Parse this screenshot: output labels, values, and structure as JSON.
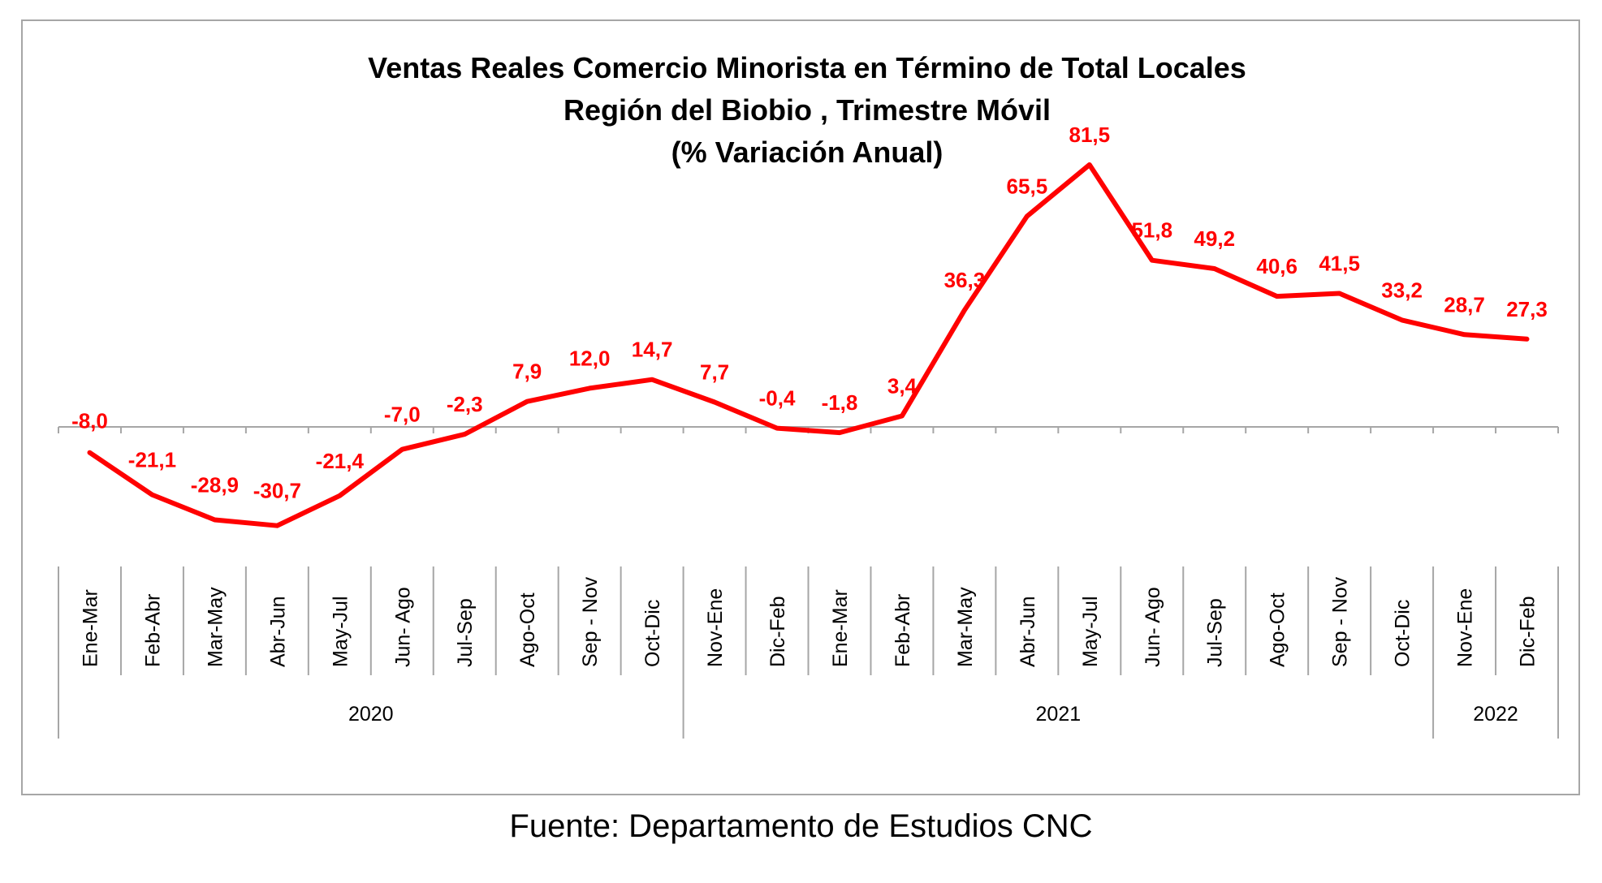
{
  "chart_data": {
    "type": "line",
    "title_lines": [
      "Ventas Reales Comercio Minorista  en Término de Total Locales",
      "Región del Biobio , Trimestre Móvil",
      "(% Variación Anual)"
    ],
    "categories": [
      "Ene-Mar",
      "Feb-Abr",
      "Mar-May",
      "Abr-Jun",
      "May-Jul",
      "Jun- Ago",
      "Jul-Sep",
      "Ago-Oct",
      "Sep - Nov",
      "Oct-Dic",
      "Nov-Ene",
      "Dic-Feb",
      "Ene-Mar",
      "Feb-Abr",
      "Mar-May",
      "Abr-Jun",
      "May-Jul",
      "Jun- Ago",
      "Jul-Sep",
      "Ago-Oct",
      "Sep - Nov",
      "Oct-Dic",
      "Nov-Ene",
      "Dic-Feb"
    ],
    "values": [
      -8.0,
      -21.1,
      -28.9,
      -30.7,
      -21.4,
      -7.0,
      -2.3,
      7.9,
      12.0,
      14.7,
      7.7,
      -0.4,
      -1.8,
      3.4,
      36.3,
      65.5,
      81.5,
      51.8,
      49.2,
      40.6,
      41.5,
      33.2,
      28.7,
      27.3
    ],
    "data_labels": [
      "-8,0",
      "-21,1",
      "-28,9",
      "-30,7",
      "-21,4",
      "-7,0",
      "-2,3",
      "7,9",
      "12,0",
      "14,7",
      "7,7",
      "-0,4",
      "-1,8",
      "3,4",
      "36,3",
      "65,5",
      "81,5",
      "51,8",
      "49,2",
      "40,6",
      "41,5",
      "33,2",
      "28,7",
      "27,3"
    ],
    "groups": [
      {
        "label": "2020",
        "start": 0,
        "end": 9
      },
      {
        "label": "2021",
        "start": 10,
        "end": 21
      },
      {
        "label": "2022",
        "start": 22,
        "end": 23
      }
    ],
    "series_color": "#ff0000",
    "ylim": [
      -32,
      82
    ],
    "grid": false,
    "legend": "none"
  },
  "source_note": "Fuente: Departamento de Estudios CNC"
}
